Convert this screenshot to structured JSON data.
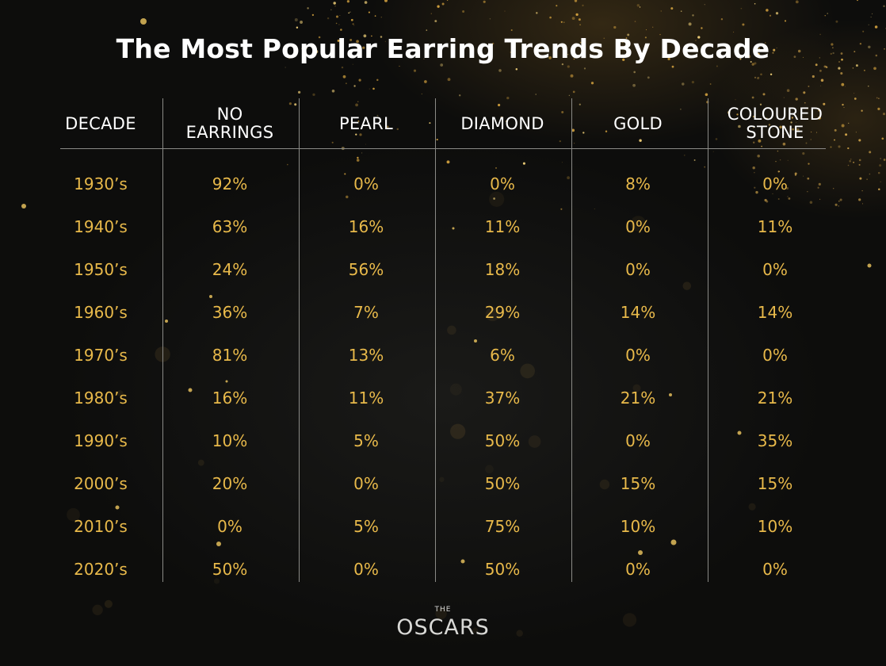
{
  "title": "The Most Popular Earring Trends By Decade",
  "logo": {
    "small": "THE",
    "big": "OSCARS"
  },
  "colors": {
    "background": "#0f0f0e",
    "header_text": "#ffffff",
    "value_text": "#e8b94a",
    "rules": "#8a8a86"
  },
  "chart_data": {
    "type": "table",
    "title": "The Most Popular Earring Trends By Decade",
    "columns": [
      "DECADE",
      "NO EARRINGS",
      "PEARL",
      "DIAMOND",
      "GOLD",
      "COLOURED STONE"
    ],
    "rows": [
      [
        "1930’s",
        "92%",
        "0%",
        "0%",
        "8%",
        "0%"
      ],
      [
        "1940’s",
        "63%",
        "16%",
        "11%",
        "0%",
        "11%"
      ],
      [
        "1950’s",
        "24%",
        "56%",
        "18%",
        "0%",
        "0%"
      ],
      [
        "1960’s",
        "36%",
        "7%",
        "29%",
        "14%",
        "14%"
      ],
      [
        "1970’s",
        "81%",
        "13%",
        "6%",
        "0%",
        "0%"
      ],
      [
        "1980’s",
        "16%",
        "11%",
        "37%",
        "21%",
        "21%"
      ],
      [
        "1990’s",
        "10%",
        "5%",
        "50%",
        "0%",
        "35%"
      ],
      [
        "2000’s",
        "20%",
        "0%",
        "50%",
        "15%",
        "15%"
      ],
      [
        "2010’s",
        "0%",
        "5%",
        "75%",
        "10%",
        "10%"
      ],
      [
        "2020’s",
        "50%",
        "0%",
        "50%",
        "0%",
        "0%"
      ]
    ]
  }
}
